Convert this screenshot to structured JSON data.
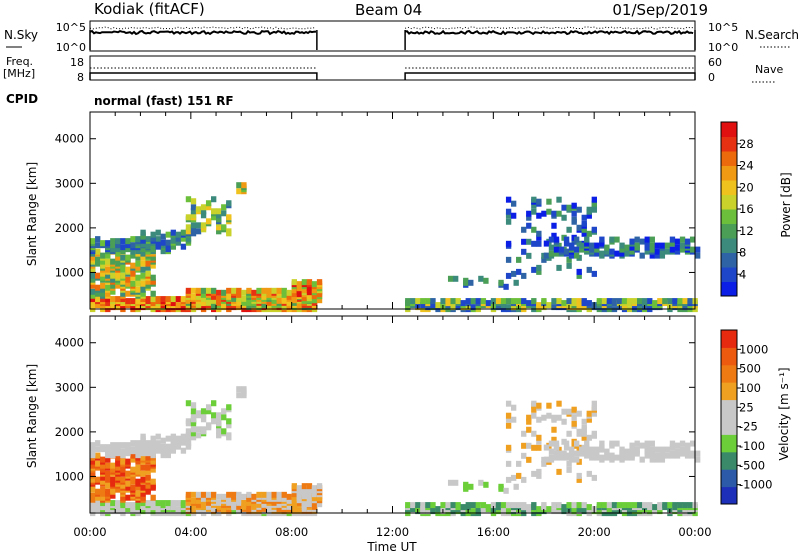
{
  "header": {
    "title": "Kodiak (fitACF)",
    "beam": "Beam 04",
    "date": "01/Sep/2019"
  },
  "status_panels": {
    "nsky_label": "N.Sky",
    "nsky_ticks": [
      "10^5",
      "10^0"
    ],
    "nsearch_label": "N.Search",
    "nsearch_ticks": [
      "10^5",
      "10^0"
    ],
    "freq_label_1": "Freq.",
    "freq_label_2": "[MHz]",
    "freq_ticks": [
      "18",
      "8"
    ],
    "nave_label": "Nave",
    "nave_ticks": [
      "60",
      "0"
    ],
    "cpid_label": "CPID",
    "cpid_value": "normal (fast) 151 RF",
    "data_gap_hours": [
      9.0,
      12.5
    ]
  },
  "chart_data": [
    {
      "type": "heatmap",
      "name": "power",
      "ylabel": "Slant Range [km]",
      "xlabel": "Time UT",
      "x_ticks": [
        "00:00",
        "04:00",
        "08:00",
        "12:00",
        "16:00",
        "20:00",
        "00:00"
      ],
      "x_range_hours": [
        0,
        24
      ],
      "y_ticks": [
        1000,
        2000,
        3000,
        4000
      ],
      "y_range_km": [
        180,
        4600
      ],
      "colorbar": {
        "label": "Power [dB]",
        "ticks": [
          "28",
          "24",
          "20",
          "16",
          "12",
          "8",
          "4"
        ],
        "colors": [
          "#0a1ee6",
          "#1e46c8",
          "#2e63a6",
          "#3b8a7c",
          "#4a9e56",
          "#6cbf3a",
          "#c8d22a",
          "#f0c21e",
          "#f09a14",
          "#ec6a0c",
          "#e63212",
          "#e01010"
        ]
      }
    },
    {
      "type": "heatmap",
      "name": "velocity",
      "ylabel": "Slant Range [km]",
      "xlabel": "Time UT",
      "x_ticks": [
        "00:00",
        "04:00",
        "08:00",
        "12:00",
        "16:00",
        "20:00",
        "00:00"
      ],
      "x_range_hours": [
        0,
        24
      ],
      "y_ticks": [
        1000,
        2000,
        3000,
        4000
      ],
      "y_range_km": [
        180,
        4600
      ],
      "colorbar": {
        "label": "Velocity [m s⁻¹]",
        "ticks": [
          "1000",
          "500",
          "100",
          "25",
          "-25",
          "-100",
          "-500",
          "-1000"
        ],
        "colors": [
          "#1d2fb8",
          "#2c5aa8",
          "#3a8a6a",
          "#6ccf3a",
          "#c8c8c8",
          "#c8c8c8",
          "#f0a020",
          "#ee7a14",
          "#ec5a10",
          "#e62a10"
        ]
      }
    }
  ]
}
